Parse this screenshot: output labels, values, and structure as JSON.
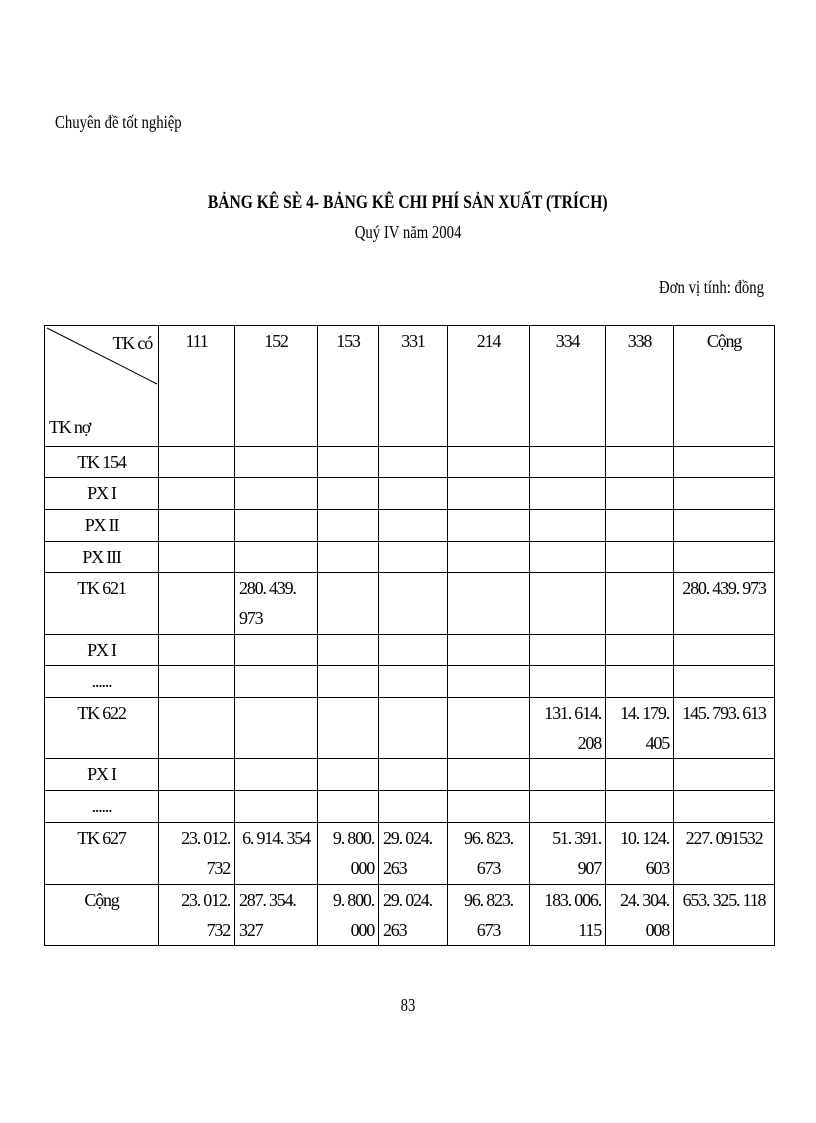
{
  "header": "Chuyên đề tốt nghiệp",
  "title": "BẢNG KÊ SÈ 4- BẢNG KÊ CHI PHÍ SẢN XUẤT (TRÍCH)",
  "subtitle": "Quý IV năm 2004",
  "unit": "Đơn vị tính: đồng",
  "table": {
    "corner_top": "TK có",
    "corner_bottom": "TK nợ",
    "columns": [
      "111",
      "152",
      "153",
      "331",
      "214",
      "334",
      "338",
      "Cộng"
    ],
    "rows": [
      {
        "label": "TK 154",
        "cells": [
          "",
          "",
          "",
          "",
          "",
          "",
          "",
          ""
        ]
      },
      {
        "label": "PX I",
        "cells": [
          "",
          "",
          "",
          "",
          "",
          "",
          "",
          ""
        ]
      },
      {
        "label": "PX II",
        "cells": [
          "",
          "",
          "",
          "",
          "",
          "",
          "",
          ""
        ]
      },
      {
        "label": "PX III",
        "cells": [
          "",
          "",
          "",
          "",
          "",
          "",
          "",
          ""
        ]
      },
      {
        "label": "TK 621",
        "cells": [
          "",
          "280. 439.\n973",
          "",
          "",
          "",
          "",
          "",
          "280. 439. 973"
        ]
      },
      {
        "label": "PX I",
        "cells": [
          "",
          "",
          "",
          "",
          "",
          "",
          "",
          ""
        ]
      },
      {
        "label": "......",
        "cells": [
          "",
          "",
          "",
          "",
          "",
          "",
          "",
          ""
        ]
      },
      {
        "label": "TK 622",
        "cells": [
          "",
          "",
          "",
          "",
          "",
          "131. 614.\n208",
          "14. 179.\n405",
          "145. 793. 613"
        ]
      },
      {
        "label": "PX I",
        "cells": [
          "",
          "",
          "",
          "",
          "",
          "",
          "",
          ""
        ]
      },
      {
        "label": "......",
        "cells": [
          "",
          "",
          "",
          "",
          "",
          "",
          "",
          ""
        ]
      },
      {
        "label": "TK 627",
        "cells": [
          "23. 012.\n732",
          "6. 914. 354",
          "9. 800.\n000",
          "29. 024.\n263",
          "96. 823. 673",
          "51. 391.\n907",
          "10. 124.\n603",
          "227. 091532"
        ]
      },
      {
        "label": "Cộng",
        "cells": [
          "23. 012.\n732",
          "287. 354.\n327",
          "9. 800.\n000",
          "29. 024.\n263",
          "96. 823. 673",
          "183. 006.\n115",
          "24. 304.\n008",
          "653. 325. 118"
        ]
      }
    ]
  },
  "page_number": "83"
}
